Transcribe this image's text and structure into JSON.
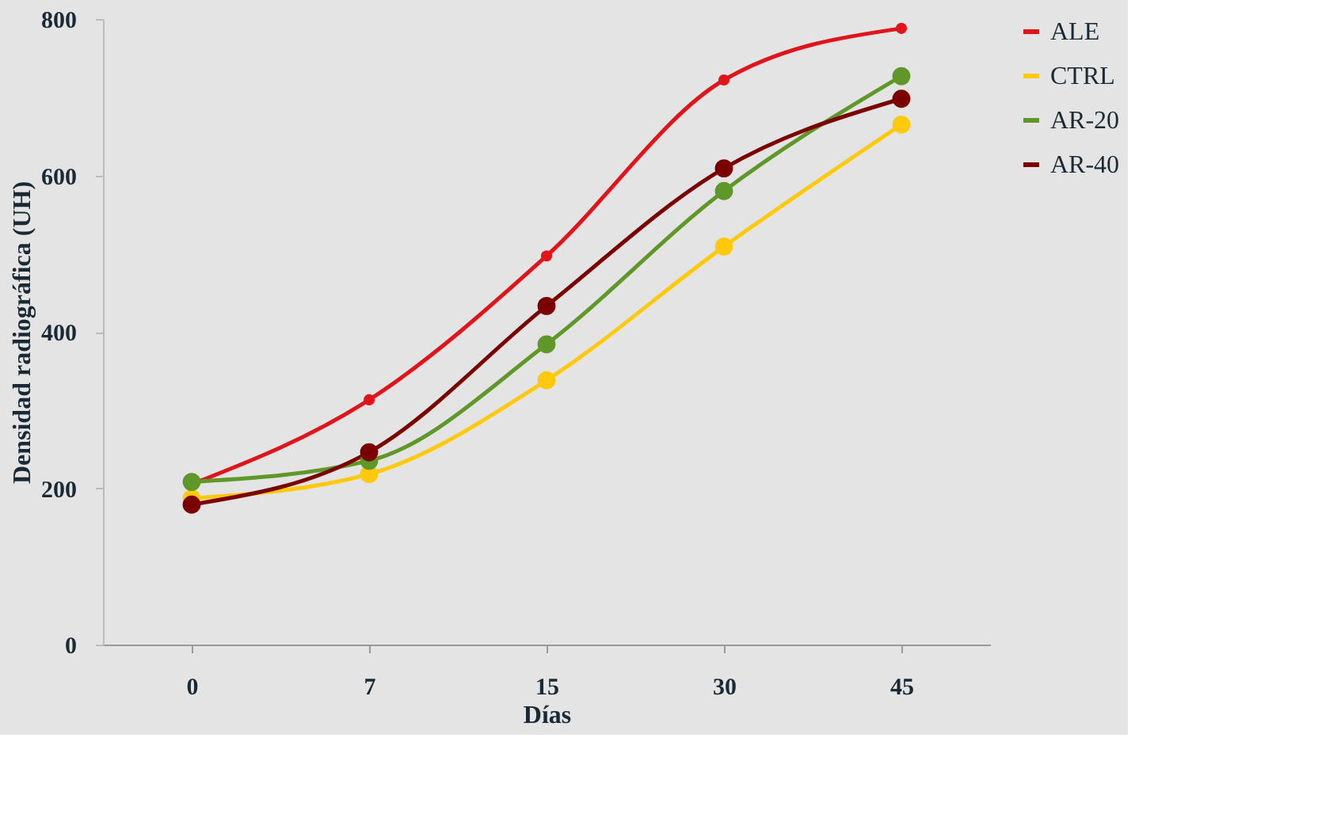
{
  "chart_data": {
    "type": "line",
    "xlabel": "Días",
    "ylabel": "Densidad radiográfica (UH)",
    "categories": [
      "0",
      "7",
      "15",
      "30",
      "45"
    ],
    "series": [
      {
        "name": "ALE",
        "color": "#e0141b",
        "values": [
          205,
          313,
          497,
          722,
          788
        ]
      },
      {
        "name": "CTRL",
        "color": "#ffc90e",
        "values": [
          187,
          218,
          338,
          509,
          665
        ]
      },
      {
        "name": "AR-20",
        "color": "#5f9829",
        "values": [
          208,
          235,
          384,
          580,
          727
        ]
      },
      {
        "name": "AR-40",
        "color": "#7b0000",
        "values": [
          179,
          246,
          433,
          609,
          698
        ]
      }
    ],
    "ylim": [
      0,
      800
    ],
    "yticks": [
      0,
      200,
      400,
      600,
      800
    ],
    "grid": false,
    "legend": "right",
    "marker": "circle",
    "line_style": "solid"
  }
}
